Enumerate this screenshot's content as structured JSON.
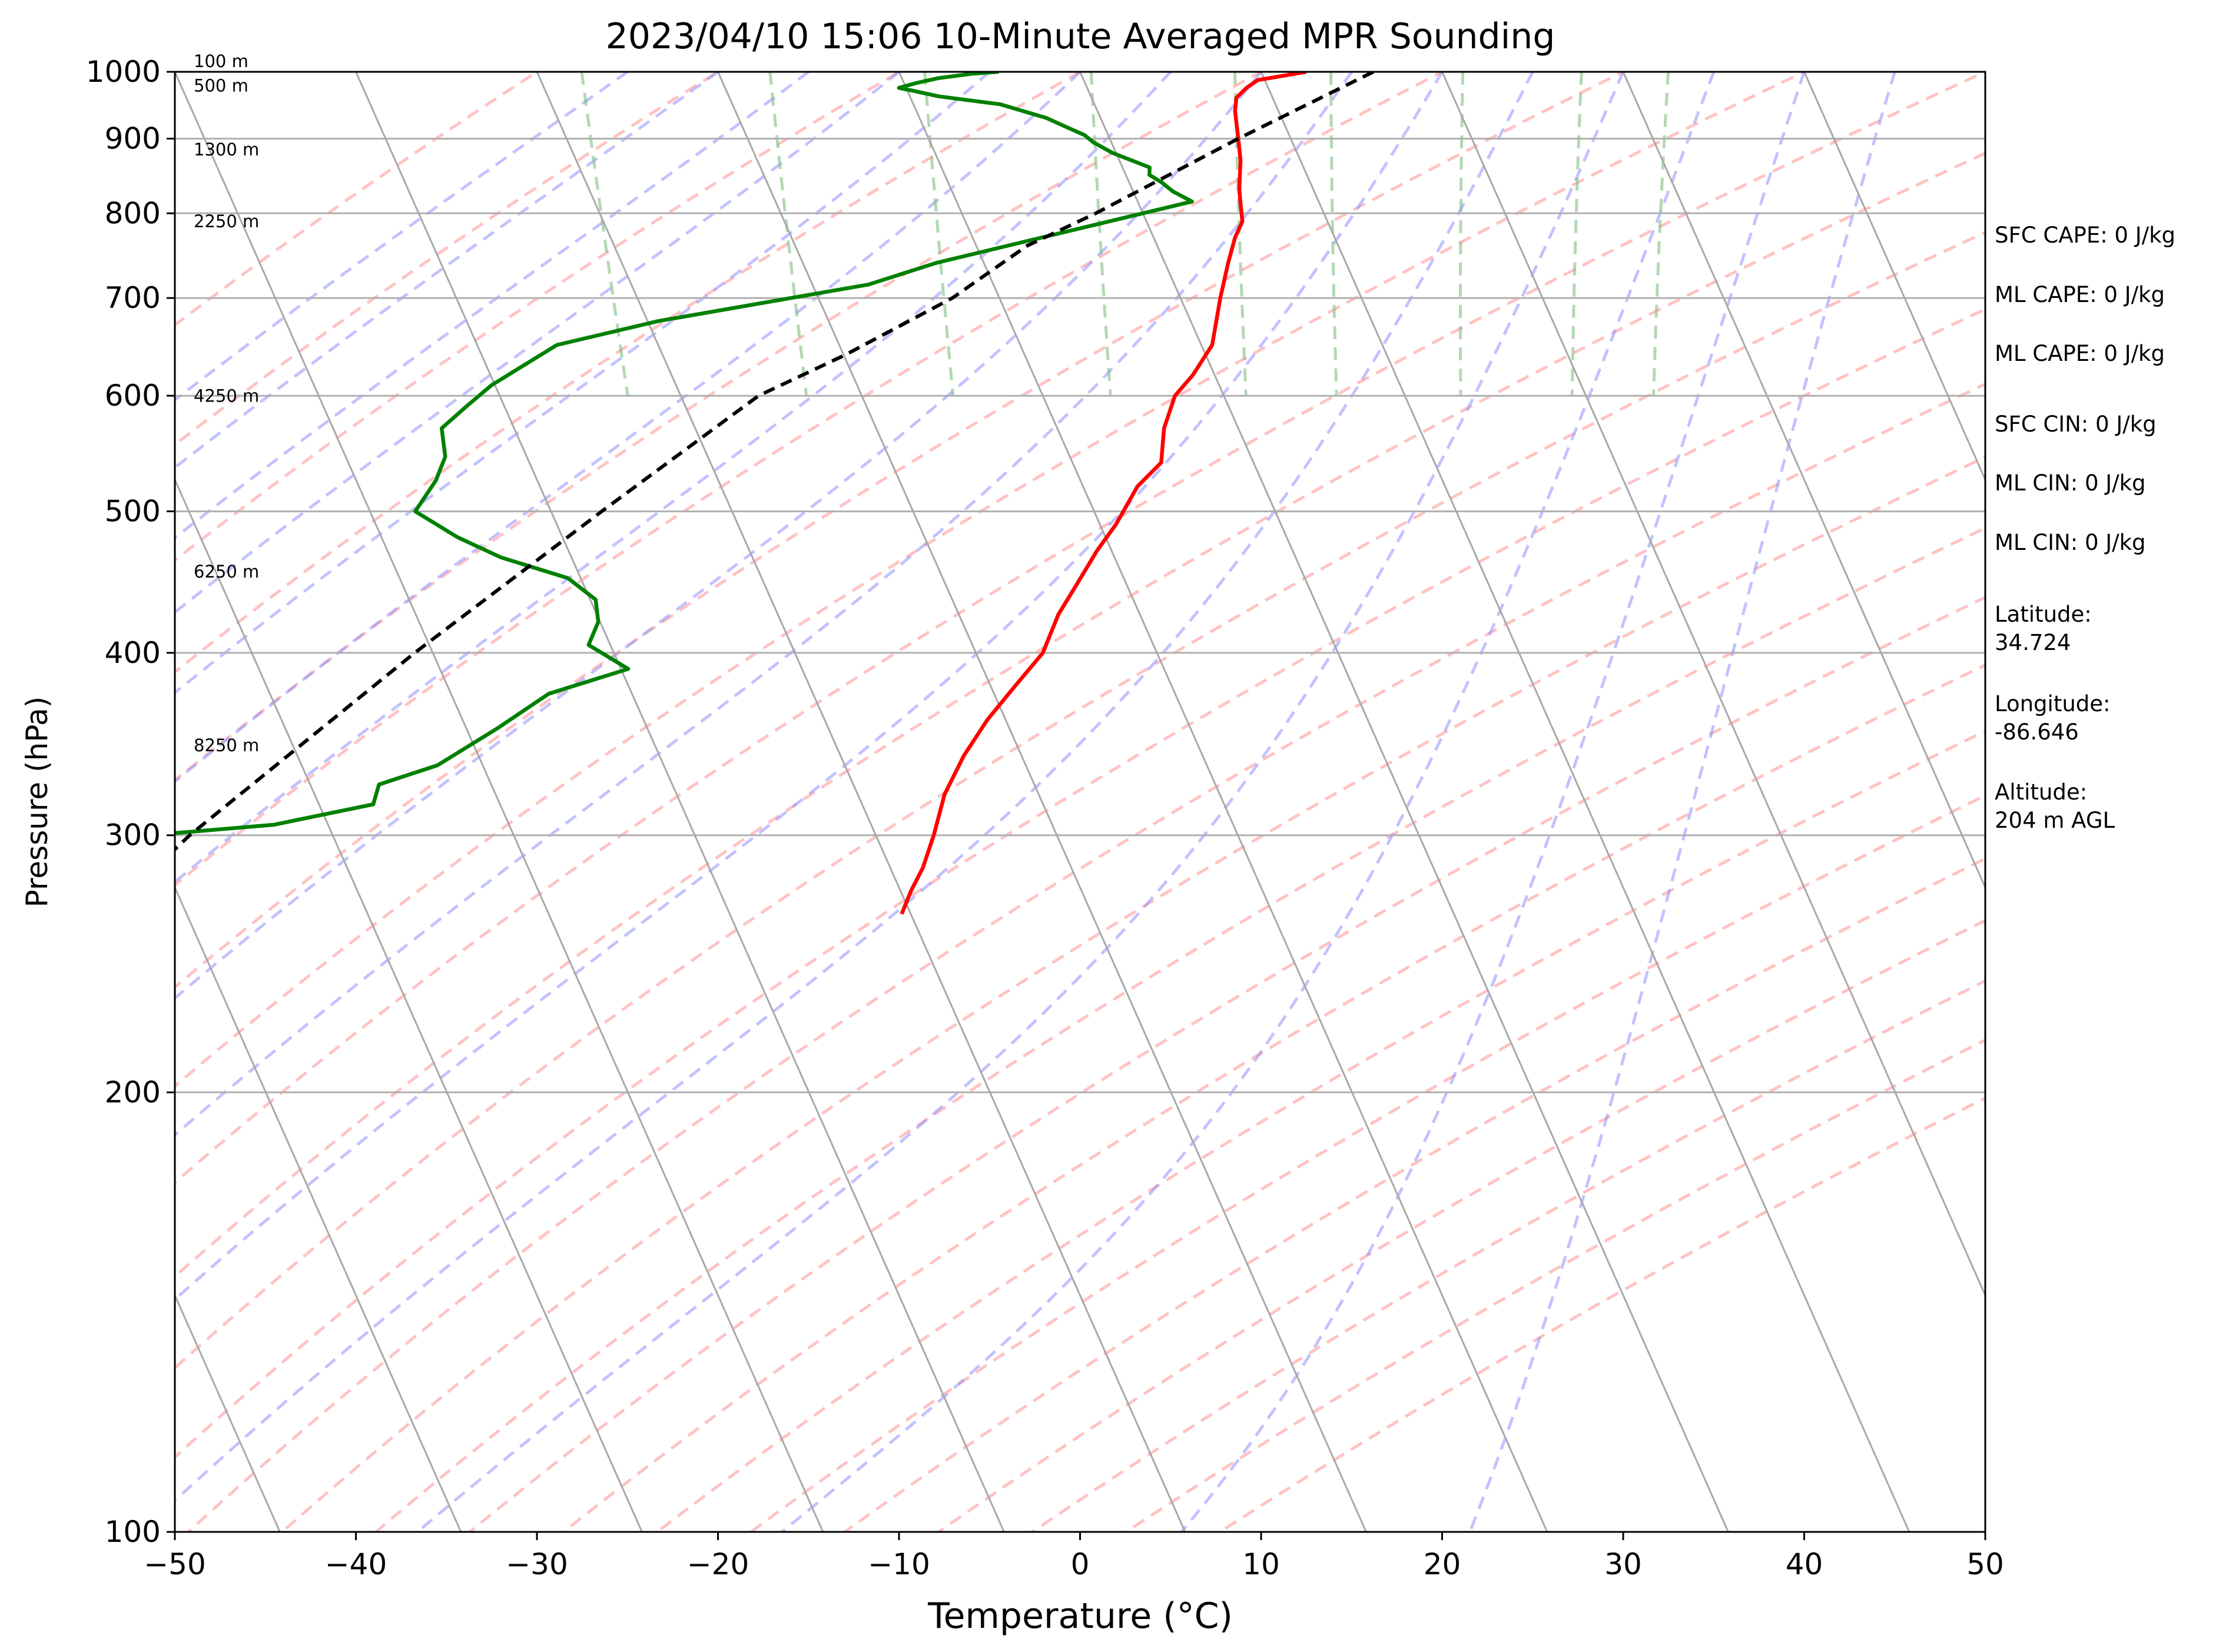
{
  "chart_data": {
    "type": "line",
    "title": "2023/04/10 15:06 10-Minute Averaged MPR Sounding",
    "xlabel": "Temperature (°C)",
    "ylabel": "Pressure (hPa)",
    "xlim": [
      -50,
      50
    ],
    "ylim": [
      1000,
      100
    ],
    "y_scale": "log",
    "skew": "skew-T",
    "grid": true,
    "x_ticks": [
      "−50",
      "−40",
      "−30",
      "−20",
      "−10",
      "0",
      "10",
      "20",
      "30",
      "40",
      "50"
    ],
    "y_ticks": [
      "100",
      "200",
      "300",
      "400",
      "500",
      "600",
      "700",
      "800",
      "900",
      "1000"
    ],
    "height_labels": [
      {
        "label": "100 m",
        "p": 1000
      },
      {
        "label": "500 m",
        "p": 962
      },
      {
        "label": "1300 m",
        "p": 870
      },
      {
        "label": "2250 m",
        "p": 777
      },
      {
        "label": "4250 m",
        "p": 590
      },
      {
        "label": "6250 m",
        "p": 447
      },
      {
        "label": "8250 m",
        "p": 340
      }
    ],
    "series": [
      {
        "color": "#ff0000",
        "points": [
          [
            12.5,
            1000
          ],
          [
            9.6,
            987
          ],
          [
            8.8,
            975
          ],
          [
            8.0,
            960
          ],
          [
            7.6,
            940
          ],
          [
            7.1,
            900
          ],
          [
            6.7,
            870
          ],
          [
            6.2,
            845
          ],
          [
            5.9,
            830
          ],
          [
            5.6,
            810
          ],
          [
            5.3,
            790
          ],
          [
            4.5,
            770
          ],
          [
            3.5,
            740
          ],
          [
            2.2,
            700
          ],
          [
            0.6,
            650
          ],
          [
            -1.2,
            620
          ],
          [
            -2.7,
            600
          ],
          [
            -4.1,
            570
          ],
          [
            -5.1,
            540
          ],
          [
            -7.0,
            520
          ],
          [
            -9.1,
            490
          ],
          [
            -10.8,
            470
          ],
          [
            -12.8,
            445
          ],
          [
            -14.5,
            425
          ],
          [
            -16.3,
            400
          ],
          [
            -18.6,
            380
          ],
          [
            -21.0,
            360
          ],
          [
            -23.2,
            340
          ],
          [
            -25.2,
            320
          ],
          [
            -26.8,
            300
          ],
          [
            -28.2,
            285
          ],
          [
            -29.4,
            275
          ],
          [
            -30.5,
            265
          ]
        ]
      },
      {
        "color": "#008000",
        "points": [
          [
            -4.5,
            1000
          ],
          [
            -6.0,
            997
          ],
          [
            -8.0,
            990
          ],
          [
            -9.4,
            982
          ],
          [
            -10.4,
            975
          ],
          [
            -9.6,
            970
          ],
          [
            -8.4,
            962
          ],
          [
            -5.2,
            950
          ],
          [
            -3.0,
            930
          ],
          [
            -2.0,
            915
          ],
          [
            -1.3,
            905
          ],
          [
            -1.0,
            895
          ],
          [
            -0.2,
            880
          ],
          [
            1.5,
            860
          ],
          [
            1.3,
            850
          ],
          [
            1.8,
            840
          ],
          [
            2.2,
            828
          ],
          [
            3.0,
            815
          ],
          [
            -12.6,
            740
          ],
          [
            -16.9,
            715
          ],
          [
            -29.4,
            675
          ],
          [
            -35.6,
            650
          ],
          [
            -40.2,
            610
          ],
          [
            -42.1,
            590
          ],
          [
            -44.0,
            570
          ],
          [
            -44.5,
            545
          ],
          [
            -45.6,
            525
          ],
          [
            -47.5,
            500
          ],
          [
            -45.8,
            480
          ],
          [
            -43.9,
            465
          ],
          [
            -40.7,
            450
          ],
          [
            -39.7,
            435
          ],
          [
            -40.1,
            420
          ],
          [
            -41.2,
            405
          ],
          [
            -39.6,
            390
          ],
          [
            -44.6,
            375
          ],
          [
            -48.3,
            355
          ],
          [
            -52.5,
            335
          ],
          [
            -56.2,
            325
          ],
          [
            -57.0,
            315
          ],
          [
            -63.0,
            305
          ],
          [
            -73.0,
            298
          ],
          [
            -80.0,
            295
          ],
          [
            -90.0,
            295
          ]
        ]
      },
      {
        "color": "#000000",
        "dashed": true,
        "points": [
          [
            16.2,
            1000
          ],
          [
            7.1,
            900
          ],
          [
            -2.6,
            800
          ],
          [
            -7.2,
            760
          ],
          [
            -12.6,
            700
          ],
          [
            -19.9,
            640
          ],
          [
            -25.7,
            600
          ],
          [
            -37.2,
            500
          ],
          [
            -51.0,
            400
          ],
          [
            -67.9,
            300
          ],
          [
            -74.4,
            265
          ]
        ]
      }
    ],
    "annotations": [
      {
        "text": "SFC CAPE: 0 J/kg"
      },
      {
        "text": "ML CAPE: 0 J/kg"
      },
      {
        "text": "ML CAPE: 0 J/kg"
      },
      {
        "text": "SFC CIN: 0 J/kg"
      },
      {
        "text": "ML CIN: 0 J/kg"
      },
      {
        "text": "ML CIN: 0 J/kg"
      },
      {
        "text": "Latitude:\n34.724"
      },
      {
        "text": "Longitude:\n-86.646"
      },
      {
        "text": "Altitude:\n204 m AGL"
      }
    ]
  }
}
